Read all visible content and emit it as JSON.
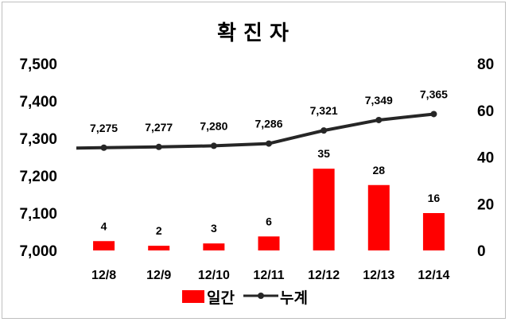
{
  "chart_data": {
    "type": "bar",
    "title": "확 진 자",
    "categories": [
      "12/8",
      "12/9",
      "12/10",
      "12/11",
      "12/12",
      "12/13",
      "12/14"
    ],
    "y_left": {
      "ticks": [
        "7,000",
        "7,100",
        "7,200",
        "7,300",
        "7,400",
        "7,500"
      ],
      "ylim": [
        7000,
        7500
      ]
    },
    "y_right": {
      "ticks": [
        "0",
        "20",
        "40",
        "60",
        "80"
      ],
      "ylim": [
        0,
        80
      ]
    },
    "series": [
      {
        "name": "일간",
        "type": "bar",
        "axis": "right",
        "color": "#ff0000",
        "values": [
          4,
          2,
          3,
          6,
          35,
          28,
          16
        ],
        "labels": [
          "4",
          "2",
          "3",
          "6",
          "35",
          "28",
          "16"
        ]
      },
      {
        "name": "누계",
        "type": "line",
        "axis": "left",
        "color": "#262626",
        "values": [
          7275,
          7277,
          7280,
          7286,
          7321,
          7349,
          7365
        ],
        "labels": [
          "7,275",
          "7,277",
          "7,280",
          "7,286",
          "7,321",
          "7,349",
          "7,365"
        ]
      }
    ],
    "grid": false,
    "legend": "bottom"
  }
}
